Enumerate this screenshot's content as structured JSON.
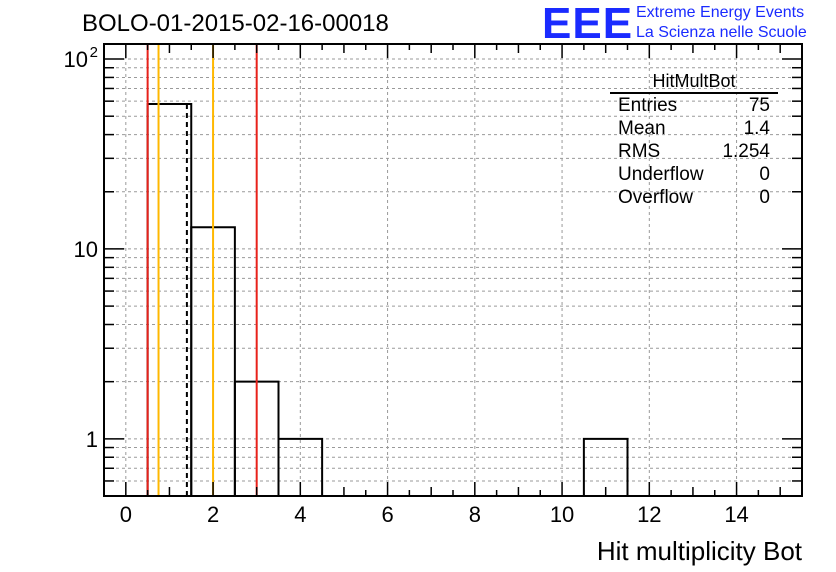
{
  "title": "BOLO-01-2015-02-16-00018",
  "logo": {
    "text": "EEE",
    "line1": "Extreme Energy Events",
    "line2": "La Scienza nelle Scuole",
    "color": "#1a2bff"
  },
  "stats_box": {
    "name": "HitMultBot",
    "rows": [
      {
        "label": "Entries",
        "value": "75"
      },
      {
        "label": "Mean",
        "value": "1.4"
      },
      {
        "label": "RMS",
        "value": "1.254"
      },
      {
        "label": "Underflow",
        "value": "0"
      },
      {
        "label": "Overflow",
        "value": "0"
      }
    ]
  },
  "chart_data": {
    "type": "bar",
    "histogram": true,
    "xlabel": "Hit multiplicity Bot",
    "ylabel": "",
    "xlim": [
      -0.5,
      15.5
    ],
    "ylim": [
      0.5,
      120
    ],
    "yscale": "log",
    "grid": true,
    "bins": [
      {
        "x_low": 0.5,
        "x_high": 1.5,
        "value": 58
      },
      {
        "x_low": 1.5,
        "x_high": 2.5,
        "value": 13
      },
      {
        "x_low": 2.5,
        "x_high": 3.5,
        "value": 2
      },
      {
        "x_low": 3.5,
        "x_high": 4.5,
        "value": 1
      },
      {
        "x_low": 10.5,
        "x_high": 11.5,
        "value": 1
      }
    ],
    "xticks": [
      0,
      2,
      4,
      6,
      8,
      10,
      12,
      14
    ],
    "xtick_labels": [
      "0",
      "2",
      "4",
      "6",
      "8",
      "10",
      "12",
      "14"
    ],
    "yticks_major": [
      1,
      10,
      100
    ],
    "ytick_labels": [
      "1",
      "10",
      "10"
    ],
    "ytick_superscripts": [
      "",
      "",
      "2"
    ],
    "vertical_lines": [
      {
        "x": 0.5,
        "color": "#e8211a",
        "style": "solid"
      },
      {
        "x": 0.75,
        "color": "#ffb800",
        "style": "solid"
      },
      {
        "x": 1.4,
        "color": "#000000",
        "style": "dashed"
      },
      {
        "x": 2.0,
        "color": "#ffb800",
        "style": "solid"
      },
      {
        "x": 3.0,
        "color": "#e8211a",
        "style": "solid"
      }
    ]
  }
}
